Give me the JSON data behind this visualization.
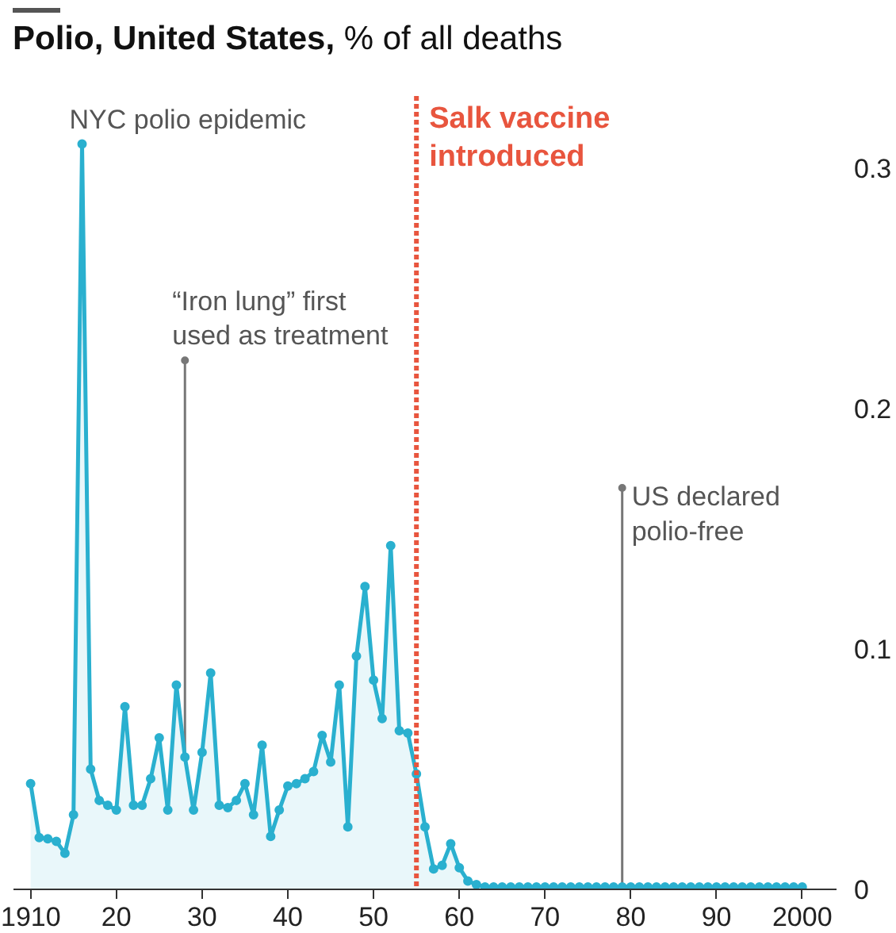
{
  "chart_data": {
    "type": "area",
    "title": "Polio, United States,",
    "subtitle": "% of all deaths",
    "x": [
      1910,
      1911,
      1912,
      1913,
      1914,
      1915,
      1916,
      1917,
      1918,
      1919,
      1920,
      1921,
      1922,
      1923,
      1924,
      1925,
      1926,
      1927,
      1928,
      1929,
      1930,
      1931,
      1932,
      1933,
      1934,
      1935,
      1936,
      1937,
      1938,
      1939,
      1940,
      1941,
      1942,
      1943,
      1944,
      1945,
      1946,
      1947,
      1948,
      1949,
      1950,
      1951,
      1952,
      1953,
      1954,
      1955,
      1956,
      1957,
      1958,
      1959,
      1960,
      1961,
      1962,
      1963,
      1964,
      1965,
      1966,
      1967,
      1968,
      1969,
      1970,
      1971,
      1972,
      1973,
      1974,
      1975,
      1976,
      1977,
      1978,
      1979,
      1980,
      1981,
      1982,
      1983,
      1984,
      1985,
      1986,
      1987,
      1988,
      1989,
      1990,
      1991,
      1992,
      1993,
      1994,
      1995,
      1996,
      1997,
      1998,
      1999,
      2000
    ],
    "series": [
      {
        "color": "#2ab0cf",
        "values": [
          0.044,
          0.0215,
          0.021,
          0.02,
          0.015,
          0.031,
          0.31,
          0.05,
          0.037,
          0.035,
          0.033,
          0.076,
          0.035,
          0.035,
          0.046,
          0.063,
          0.033,
          0.085,
          0.055,
          0.033,
          0.057,
          0.09,
          0.035,
          0.034,
          0.037,
          0.044,
          0.031,
          0.06,
          0.022,
          0.033,
          0.043,
          0.044,
          0.046,
          0.049,
          0.064,
          0.053,
          0.085,
          0.026,
          0.097,
          0.126,
          0.087,
          0.071,
          0.143,
          0.066,
          0.065,
          0.048,
          0.026,
          0.0085,
          0.01,
          0.019,
          0.009,
          0.0035,
          0.002,
          0.001,
          0.001,
          0.001,
          0.001,
          0.001,
          0.001,
          0.001,
          0.001,
          0.001,
          0.001,
          0.001,
          0.001,
          0.001,
          0.001,
          0.001,
          0.001,
          0.001,
          0.001,
          0.001,
          0.001,
          0.001,
          0.001,
          0.001,
          0.001,
          0.001,
          0.001,
          0.001,
          0.001,
          0.001,
          0.001,
          0.001,
          0.001,
          0.001,
          0.001,
          0.001,
          0.001,
          0.001,
          0.001
        ]
      }
    ],
    "xlim": [
      1908,
      2004
    ],
    "ylim": [
      0,
      0.33
    ],
    "xticks": [
      {
        "value": 1910,
        "label": "1910"
      },
      {
        "value": 1920,
        "label": "20"
      },
      {
        "value": 1930,
        "label": "30"
      },
      {
        "value": 1940,
        "label": "40"
      },
      {
        "value": 1950,
        "label": "50"
      },
      {
        "value": 1960,
        "label": "60"
      },
      {
        "value": 1970,
        "label": "70"
      },
      {
        "value": 1980,
        "label": "80"
      },
      {
        "value": 1990,
        "label": "90"
      },
      {
        "value": 2000,
        "label": "2000"
      }
    ],
    "yticks": [
      0,
      0.1,
      0.2,
      0.3
    ],
    "marker": "circle",
    "grid": false,
    "ref_lines": [
      {
        "axis": "x",
        "value": 1955,
        "label": "Salk vaccine\nintroduced",
        "color": "#e8553e",
        "line_style": "dotted"
      }
    ],
    "annotations": [
      {
        "text": "NYC polio epidemic",
        "x": 1916,
        "y": 0.31
      },
      {
        "text": "“Iron lung” first\nused as treatment",
        "x": 1928,
        "y": 0.22
      },
      {
        "text": "US declared\npolio-free",
        "x": 1979,
        "y": 0.167
      }
    ]
  }
}
